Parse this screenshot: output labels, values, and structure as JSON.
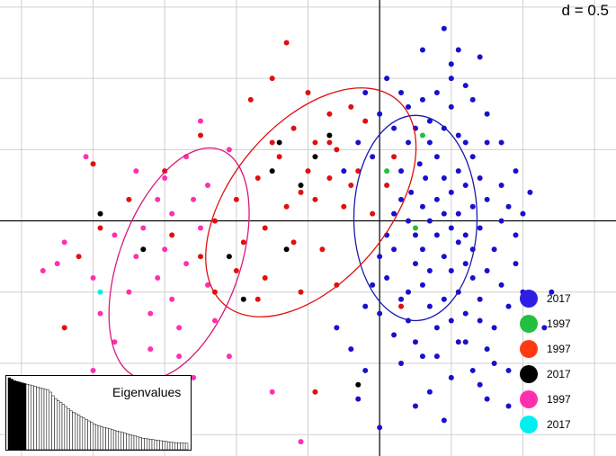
{
  "scale_label": "d = 0.5",
  "colors": {
    "grid": "#d0d0d0",
    "axis": "#000000",
    "blue": "#1a0fcc",
    "red": "#e01010",
    "black": "#000000",
    "magenta": "#ff2fb0",
    "cyan": "#00f0f0",
    "green": "#22c040",
    "legend_blue": "#2d1ee6",
    "legend_red": "#ff3a12",
    "ellipse_blue": "#1a1ab0",
    "ellipse_red": "#e01010",
    "ellipse_magenta": "#d8187a"
  },
  "chart_data": {
    "type": "scatter",
    "description_scale": "d = 0.5",
    "grid": true,
    "xlim": [
      -2.65,
      1.65
    ],
    "ylim": [
      -1.65,
      1.55
    ],
    "legend": [
      {
        "label": "2017",
        "color": "#2d1ee6"
      },
      {
        "label": "1997",
        "color": "#22c040"
      },
      {
        "label": "1997",
        "color": "#ff3a12"
      },
      {
        "label": "2017",
        "color": "#000000"
      },
      {
        "label": "1997",
        "color": "#ff2fb0"
      },
      {
        "label": "2017",
        "color": "#00f0f0"
      }
    ],
    "ellipses": [
      {
        "group": "blue",
        "cx": 0.25,
        "cy": 0.02,
        "rx": 0.43,
        "ry": 0.72,
        "angle": 0
      },
      {
        "group": "red",
        "cx": -0.48,
        "cy": 0.13,
        "rx": 0.55,
        "ry": 0.94,
        "angle": 40
      },
      {
        "group": "magenta",
        "cx": -1.4,
        "cy": -0.3,
        "rx": 0.42,
        "ry": 0.85,
        "angle": 20
      }
    ],
    "series": [
      {
        "group": "blue",
        "points": [
          [
            0.2,
            0.55
          ],
          [
            0.35,
            0.7
          ],
          [
            0.4,
            0.9
          ],
          [
            0.5,
            1.0
          ],
          [
            0.28,
            0.4
          ],
          [
            0.32,
            0.3
          ],
          [
            0.22,
            0.2
          ],
          [
            0.15,
            0.35
          ],
          [
            0.4,
            0.45
          ],
          [
            0.45,
            0.3
          ],
          [
            0.5,
            0.2
          ],
          [
            0.55,
            0.35
          ],
          [
            0.6,
            0.25
          ],
          [
            0.65,
            0.1
          ],
          [
            0.7,
            0.3
          ],
          [
            0.3,
            0.1
          ],
          [
            0.35,
            0.0
          ],
          [
            0.4,
            -0.1
          ],
          [
            0.5,
            -0.05
          ],
          [
            0.55,
            0.05
          ],
          [
            0.6,
            -0.1
          ],
          [
            0.65,
            -0.2
          ],
          [
            0.7,
            -0.05
          ],
          [
            0.75,
            0.15
          ],
          [
            0.45,
            -0.25
          ],
          [
            0.5,
            -0.35
          ],
          [
            0.55,
            -0.5
          ],
          [
            0.6,
            -0.3
          ],
          [
            0.65,
            -0.4
          ],
          [
            0.7,
            -0.55
          ],
          [
            0.75,
            -0.35
          ],
          [
            0.8,
            -0.2
          ],
          [
            0.25,
            -0.3
          ],
          [
            0.3,
            -0.45
          ],
          [
            0.35,
            -0.6
          ],
          [
            0.4,
            -0.75
          ],
          [
            0.45,
            -0.55
          ],
          [
            0.5,
            -0.7
          ],
          [
            0.55,
            -0.85
          ],
          [
            0.6,
            -0.65
          ],
          [
            0.1,
            -0.2
          ],
          [
            0.05,
            -0.4
          ],
          [
            0.15,
            -0.55
          ],
          [
            0.2,
            -0.7
          ],
          [
            0.25,
            -0.85
          ],
          [
            0.3,
            -0.95
          ],
          [
            0.1,
            -0.8
          ],
          [
            0.0,
            -0.65
          ],
          [
            -0.05,
            -0.45
          ],
          [
            0.0,
            -0.25
          ],
          [
            0.05,
            -0.1
          ],
          [
            0.1,
            0.05
          ],
          [
            0.15,
            0.15
          ],
          [
            0.2,
            0.0
          ],
          [
            0.25,
            -0.1
          ],
          [
            0.3,
            -0.2
          ],
          [
            0.85,
            0.0
          ],
          [
            0.9,
            0.1
          ],
          [
            0.95,
            -0.1
          ],
          [
            1.0,
            0.05
          ],
          [
            0.95,
            -0.3
          ],
          [
            1.0,
            -0.5
          ],
          [
            1.05,
            -0.7
          ],
          [
            0.9,
            -0.6
          ],
          [
            0.85,
            -0.45
          ],
          [
            0.8,
            -0.75
          ],
          [
            0.75,
            -0.9
          ],
          [
            0.65,
            -1.05
          ],
          [
            0.5,
            -1.1
          ],
          [
            0.35,
            -1.2
          ],
          [
            0.15,
            -1.0
          ],
          [
            -0.1,
            -1.05
          ],
          [
            -0.2,
            -0.9
          ],
          [
            -0.3,
            -0.75
          ],
          [
            -0.1,
            -0.6
          ],
          [
            -0.15,
            -1.25
          ],
          [
            0.7,
            -1.15
          ],
          [
            0.9,
            -1.05
          ],
          [
            1.05,
            -1.25
          ],
          [
            1.0,
            -0.9
          ],
          [
            0.3,
            1.2
          ],
          [
            0.45,
            1.35
          ],
          [
            0.55,
            1.2
          ],
          [
            0.7,
            1.15
          ],
          [
            0.6,
            0.95
          ],
          [
            0.75,
            0.75
          ],
          [
            0.85,
            0.55
          ],
          [
            0.95,
            0.35
          ],
          [
            0.2,
            0.8
          ],
          [
            0.1,
            0.65
          ],
          [
            0.0,
            0.75
          ],
          [
            -0.1,
            0.9
          ],
          [
            -0.05,
            0.45
          ],
          [
            -0.15,
            0.55
          ],
          [
            -0.25,
            0.35
          ],
          [
            0.05,
            1.0
          ],
          [
            0.55,
            0.6
          ],
          [
            0.65,
            0.45
          ],
          [
            0.75,
            0.55
          ],
          [
            0.35,
            0.55
          ],
          [
            0.45,
            0.65
          ],
          [
            0.25,
            0.65
          ],
          [
            0.5,
            0.8
          ],
          [
            0.4,
            0.15
          ],
          [
            0.6,
            0.55
          ],
          [
            0.45,
            0.05
          ],
          [
            0.35,
            -0.35
          ],
          [
            0.2,
            -0.5
          ],
          [
            0.55,
            -0.15
          ],
          [
            0.7,
            -0.7
          ],
          [
            0.4,
            -0.95
          ],
          [
            0.6,
            -0.85
          ],
          [
            1.15,
            -0.75
          ],
          [
            1.05,
            0.2
          ],
          [
            0.85,
            0.25
          ],
          [
            0.3,
            0.85
          ],
          [
            0.15,
            0.9
          ],
          [
            0.65,
            0.85
          ],
          [
            0.8,
            -1.0
          ],
          [
            0.5,
            1.1
          ],
          [
            0.25,
            -1.3
          ],
          [
            0.45,
            -1.4
          ],
          [
            0.0,
            -1.45
          ],
          [
            0.9,
            -1.3
          ],
          [
            1.2,
            -0.5
          ],
          [
            0.75,
            -1.25
          ]
        ]
      },
      {
        "group": "red",
        "points": [
          [
            -0.65,
            1.25
          ],
          [
            -0.75,
            1.0
          ],
          [
            -0.9,
            0.85
          ],
          [
            -0.5,
            0.9
          ],
          [
            -0.35,
            0.75
          ],
          [
            -0.2,
            0.8
          ],
          [
            -0.1,
            0.7
          ],
          [
            -0.6,
            0.65
          ],
          [
            -0.45,
            0.55
          ],
          [
            -0.3,
            0.5
          ],
          [
            -0.7,
            0.45
          ],
          [
            -0.5,
            0.35
          ],
          [
            -0.35,
            0.3
          ],
          [
            -0.2,
            0.25
          ],
          [
            -0.85,
            0.3
          ],
          [
            -1.0,
            0.15
          ],
          [
            -0.65,
            0.1
          ],
          [
            -0.45,
            0.15
          ],
          [
            -0.25,
            0.1
          ],
          [
            -0.05,
            0.05
          ],
          [
            -0.15,
            0.35
          ],
          [
            -0.8,
            -0.05
          ],
          [
            -0.6,
            -0.15
          ],
          [
            -0.4,
            -0.2
          ],
          [
            -1.15,
            0.0
          ],
          [
            -1.25,
            -0.25
          ],
          [
            -1.0,
            -0.35
          ],
          [
            -0.8,
            -0.4
          ],
          [
            -0.55,
            -0.5
          ],
          [
            -0.3,
            -0.45
          ],
          [
            0.1,
            0.45
          ],
          [
            0.05,
            0.25
          ],
          [
            -1.45,
            -0.1
          ],
          [
            -1.5,
            0.35
          ],
          [
            -1.15,
            -0.5
          ],
          [
            -0.85,
            -0.55
          ],
          [
            -1.75,
            0.15
          ],
          [
            -2.0,
            0.4
          ],
          [
            -1.95,
            -0.05
          ],
          [
            -2.1,
            -0.25
          ],
          [
            -2.2,
            -0.75
          ],
          [
            -0.45,
            -1.2
          ],
          [
            -0.55,
            0.2
          ],
          [
            -0.35,
            0.55
          ],
          [
            0.15,
            -0.6
          ],
          [
            -1.25,
            0.6
          ],
          [
            -0.95,
            -0.15
          ],
          [
            -0.75,
            0.55
          ]
        ]
      },
      {
        "group": "black",
        "points": [
          [
            -1.95,
            0.05
          ],
          [
            -1.65,
            -0.2
          ],
          [
            -1.05,
            -0.25
          ],
          [
            -0.95,
            -0.55
          ],
          [
            -0.75,
            0.35
          ],
          [
            -0.55,
            0.25
          ],
          [
            -0.65,
            -0.2
          ],
          [
            -0.45,
            0.45
          ],
          [
            -0.7,
            0.55
          ],
          [
            -0.35,
            0.6
          ],
          [
            -0.15,
            -1.15
          ]
        ]
      },
      {
        "group": "magenta",
        "points": [
          [
            -2.35,
            -0.35
          ],
          [
            -2.25,
            -0.3
          ],
          [
            -2.2,
            -0.15
          ],
          [
            -2.0,
            -0.4
          ],
          [
            -1.95,
            -0.65
          ],
          [
            -1.85,
            -0.1
          ],
          [
            -1.75,
            -0.5
          ],
          [
            -1.7,
            -0.25
          ],
          [
            -1.65,
            -0.05
          ],
          [
            -1.6,
            -0.65
          ],
          [
            -1.55,
            -0.4
          ],
          [
            -1.5,
            -0.2
          ],
          [
            -1.45,
            -0.55
          ],
          [
            -1.4,
            -0.75
          ],
          [
            -1.35,
            -0.3
          ],
          [
            -1.3,
            0.15
          ],
          [
            -1.25,
            -0.05
          ],
          [
            -1.2,
            -0.45
          ],
          [
            -1.7,
            0.35
          ],
          [
            -1.55,
            0.15
          ],
          [
            -1.45,
            0.05
          ],
          [
            -1.35,
            0.45
          ],
          [
            -1.2,
            0.25
          ],
          [
            -1.15,
            -0.7
          ],
          [
            -1.05,
            0.5
          ],
          [
            -1.25,
            0.7
          ],
          [
            -2.0,
            -1.05
          ],
          [
            -1.8,
            -1.35
          ],
          [
            -1.65,
            -1.15
          ],
          [
            -1.95,
            -1.5
          ],
          [
            -1.5,
            -1.3
          ],
          [
            -1.3,
            -1.1
          ],
          [
            -1.4,
            -0.95
          ],
          [
            -2.05,
            0.45
          ],
          [
            -1.05,
            -0.95
          ],
          [
            -1.85,
            -0.85
          ],
          [
            -1.5,
            0.3
          ],
          [
            -1.6,
            -0.9
          ],
          [
            -0.55,
            -1.55
          ],
          [
            -0.75,
            -1.2
          ]
        ]
      },
      {
        "group": "cyan",
        "points": [
          [
            -1.95,
            -0.5
          ]
        ]
      },
      {
        "group": "green",
        "points": [
          [
            0.05,
            0.35
          ],
          [
            0.25,
            -0.05
          ],
          [
            0.3,
            0.6
          ]
        ]
      }
    ],
    "eigenvalues": [
      1.0,
      0.98,
      0.96,
      0.95,
      0.94,
      0.93,
      0.92,
      0.91,
      0.9,
      0.89,
      0.88,
      0.87,
      0.86,
      0.85,
      0.84,
      0.83,
      0.8,
      0.75,
      0.71,
      0.68,
      0.66,
      0.63,
      0.6,
      0.57,
      0.54,
      0.52,
      0.5,
      0.48,
      0.46,
      0.44,
      0.42,
      0.4,
      0.38,
      0.36,
      0.34,
      0.33,
      0.32,
      0.31,
      0.3,
      0.29,
      0.28,
      0.27,
      0.26,
      0.25,
      0.24,
      0.23,
      0.22,
      0.21,
      0.2,
      0.19,
      0.18,
      0.17,
      0.16,
      0.155,
      0.15,
      0.145,
      0.14,
      0.135,
      0.13,
      0.125,
      0.12,
      0.115,
      0.11,
      0.105,
      0.1,
      0.098,
      0.096,
      0.094,
      0.092,
      0.09
    ],
    "eigenvalues_title": "Eigenvalues",
    "eigen_black_count": 7
  }
}
